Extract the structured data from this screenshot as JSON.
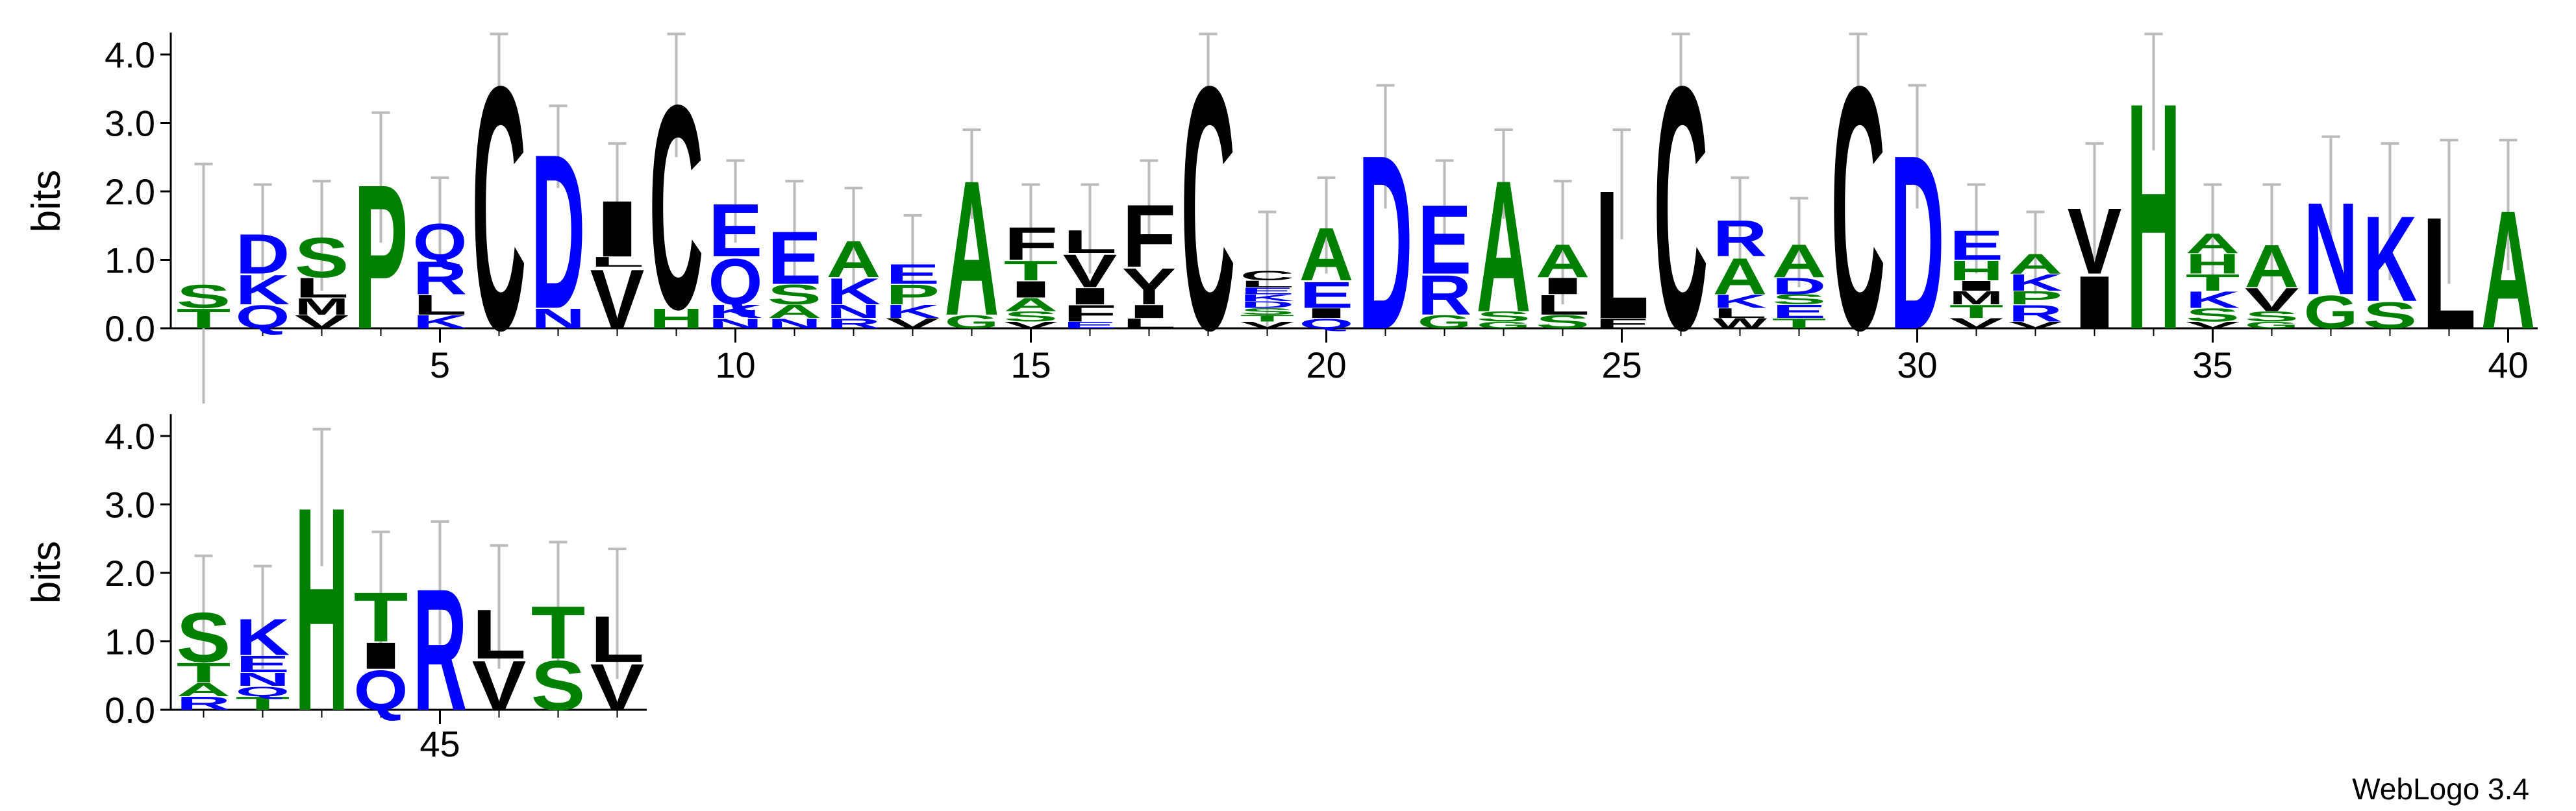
{
  "credit": "WebLogo 3.4",
  "colors": {
    "A": "#008000",
    "C": "#000000",
    "D": "#0000ff",
    "E": "#0000ff",
    "F": "#000000",
    "G": "#008000",
    "H": "#008000",
    "I": "#000000",
    "K": "#0000ff",
    "L": "#000000",
    "M": "#000000",
    "N": "#0000ff",
    "P": "#008000",
    "Q": "#0000ff",
    "R": "#0000ff",
    "S": "#008000",
    "T": "#008000",
    "V": "#000000",
    "W": "#000000",
    "Y": "#000000"
  },
  "chart_data": [
    {
      "type": "logo",
      "ylabel": "bits",
      "ylim": [
        0,
        4.32
      ],
      "yticks": [
        {
          "value": 0,
          "label": "0.0"
        },
        {
          "value": 1,
          "label": "1.0"
        },
        {
          "value": 2,
          "label": "2.0"
        },
        {
          "value": 3,
          "label": "3.0"
        },
        {
          "value": 4,
          "label": "4.0"
        }
      ],
      "xlim": [
        0.5,
        40.5
      ],
      "xticks": [
        5,
        10,
        15,
        20,
        25,
        30,
        35,
        40
      ],
      "positions": [
        {
          "x": 1,
          "letters": [
            "T",
            "S"
          ],
          "bits": [
            0.3,
            0.35
          ],
          "error": 1.75
        },
        {
          "x": 2,
          "letters": [
            "Q",
            "K",
            "D"
          ],
          "bits": [
            0.35,
            0.45,
            0.6
          ],
          "error": 0.7
        },
        {
          "x": 3,
          "letters": [
            "V",
            "M",
            "L",
            "S"
          ],
          "bits": [
            0.2,
            0.25,
            0.3,
            0.6
          ],
          "error": 0.8
        },
        {
          "x": 4,
          "letters": [
            "P"
          ],
          "bits": [
            2.2
          ],
          "error": 0.95
        },
        {
          "x": 5,
          "letters": [
            "K",
            "L",
            "R",
            "Q"
          ],
          "bits": [
            0.2,
            0.3,
            0.5,
            0.55
          ],
          "error": 0.65
        },
        {
          "x": 6,
          "letters": [
            "C"
          ],
          "bits": [
            3.7
          ],
          "error": 0.6
        },
        {
          "x": 7,
          "letters": [
            "N",
            "D"
          ],
          "bits": [
            0.3,
            2.35
          ],
          "error": 0.6
        },
        {
          "x": 8,
          "letters": [
            "V",
            "L",
            "I"
          ],
          "bits": [
            0.9,
            0.15,
            0.85
          ],
          "error": 0.8
        },
        {
          "x": 9,
          "letters": [
            "H",
            "C"
          ],
          "bits": [
            0.3,
            3.1
          ],
          "error": 0.9
        },
        {
          "x": 10,
          "letters": [
            "N",
            "K",
            "Q",
            "E"
          ],
          "bits": [
            0.15,
            0.2,
            0.7,
            0.8
          ],
          "error": 0.6
        },
        {
          "x": 11,
          "letters": [
            "N",
            "A",
            "S",
            "E"
          ],
          "bits": [
            0.15,
            0.2,
            0.3,
            0.8
          ],
          "error": 0.7
        },
        {
          "x": 12,
          "letters": [
            "R",
            "N",
            "K",
            "A"
          ],
          "bits": [
            0.15,
            0.2,
            0.4,
            0.55
          ],
          "error": 0.75
        },
        {
          "x": 13,
          "letters": [
            "V",
            "K",
            "P",
            "E"
          ],
          "bits": [
            0.15,
            0.2,
            0.3,
            0.3
          ],
          "error": 0.7
        },
        {
          "x": 14,
          "letters": [
            "G",
            "A"
          ],
          "bits": [
            0.2,
            2.05
          ],
          "error": 0.65
        },
        {
          "x": 15,
          "letters": [
            "V",
            "S",
            "A",
            "I",
            "T",
            "F"
          ],
          "bits": [
            0.1,
            0.15,
            0.2,
            0.25,
            0.3,
            0.5
          ],
          "error": 0.6
        },
        {
          "x": 16,
          "letters": [
            "E",
            "F",
            "I",
            "V",
            "L"
          ],
          "bits": [
            0.1,
            0.25,
            0.25,
            0.5,
            0.35
          ],
          "error": 0.65
        },
        {
          "x": 17,
          "letters": [
            "L",
            "I",
            "Y",
            "F"
          ],
          "bits": [
            0.15,
            0.2,
            0.55,
            0.95
          ],
          "error": 0.6
        },
        {
          "x": 18,
          "letters": [
            "C"
          ],
          "bits": [
            3.7
          ],
          "error": 0.6
        },
        {
          "x": 19,
          "letters": [
            "V",
            "T",
            "S",
            "D",
            "K",
            "E",
            "L",
            "C"
          ],
          "bits": [
            0.1,
            0.1,
            0.1,
            0.1,
            0.1,
            0.1,
            0.1,
            0.15
          ],
          "error": 0.85
        },
        {
          "x": 20,
          "letters": [
            "Q",
            "I",
            "E",
            "A"
          ],
          "bits": [
            0.15,
            0.15,
            0.4,
            0.8
          ],
          "error": 0.7
        },
        {
          "x": 21,
          "letters": [
            "D"
          ],
          "bits": [
            2.65
          ],
          "error": 0.9
        },
        {
          "x": 22,
          "letters": [
            "G",
            "R",
            "E"
          ],
          "bits": [
            0.2,
            0.6,
            1.05
          ],
          "error": 0.6
        },
        {
          "x": 23,
          "letters": [
            "G",
            "S",
            "A"
          ],
          "bits": [
            0.1,
            0.15,
            2.0
          ],
          "error": 0.65
        },
        {
          "x": 24,
          "letters": [
            "S",
            "L",
            "I",
            "A"
          ],
          "bits": [
            0.2,
            0.3,
            0.25,
            0.5
          ],
          "error": 0.9
        },
        {
          "x": 25,
          "letters": [
            "F",
            "L"
          ],
          "bits": [
            0.15,
            1.95
          ],
          "error": 0.8
        },
        {
          "x": 26,
          "letters": [
            "C"
          ],
          "bits": [
            3.7
          ],
          "error": 0.6
        },
        {
          "x": 27,
          "letters": [
            "W",
            "L",
            "K",
            "A",
            "R"
          ],
          "bits": [
            0.15,
            0.15,
            0.2,
            0.55,
            0.55
          ],
          "error": 0.6
        },
        {
          "x": 28,
          "letters": [
            "T",
            "E",
            "S",
            "D",
            "A"
          ],
          "bits": [
            0.15,
            0.2,
            0.15,
            0.25,
            0.5
          ],
          "error": 0.65
        },
        {
          "x": 29,
          "letters": [
            "C"
          ],
          "bits": [
            3.7
          ],
          "error": 0.6
        },
        {
          "x": 30,
          "letters": [
            "D"
          ],
          "bits": [
            2.65
          ],
          "error": 0.9
        },
        {
          "x": 31,
          "letters": [
            "V",
            "T",
            "M",
            "I",
            "H",
            "E"
          ],
          "bits": [
            0.15,
            0.2,
            0.2,
            0.15,
            0.3,
            0.45
          ],
          "error": 0.65
        },
        {
          "x": 32,
          "letters": [
            "V",
            "R",
            "P",
            "K",
            "A"
          ],
          "bits": [
            0.1,
            0.25,
            0.2,
            0.25,
            0.3
          ],
          "error": 0.6
        },
        {
          "x": 33,
          "letters": [
            "I",
            "V"
          ],
          "bits": [
            0.8,
            1.0
          ],
          "error": 0.9
        },
        {
          "x": 34,
          "letters": [
            "H"
          ],
          "bits": [
            3.45
          ],
          "error": 0.85
        },
        {
          "x": 35,
          "letters": [
            "V",
            "S",
            "K",
            "T",
            "H",
            "A"
          ],
          "bits": [
            0.1,
            0.2,
            0.25,
            0.25,
            0.3,
            0.3
          ],
          "error": 0.7
        },
        {
          "x": 36,
          "letters": [
            "G",
            "S",
            "V",
            "A"
          ],
          "bits": [
            0.1,
            0.15,
            0.35,
            0.65
          ],
          "error": 0.85
        },
        {
          "x": 37,
          "letters": [
            "G",
            "N"
          ],
          "bits": [
            0.5,
            1.4
          ],
          "error": 0.9
        },
        {
          "x": 38,
          "letters": [
            "S",
            "K"
          ],
          "bits": [
            0.4,
            1.3
          ],
          "error": 1.0
        },
        {
          "x": 39,
          "letters": [
            "L"
          ],
          "bits": [
            1.7
          ],
          "error": 1.05
        },
        {
          "x": 40,
          "letters": [
            "A"
          ],
          "bits": [
            1.8
          ],
          "error": 0.95
        }
      ]
    },
    {
      "type": "logo",
      "ylabel": "bits",
      "ylim": [
        0,
        4.32
      ],
      "yticks": [
        {
          "value": 0,
          "label": "0.0"
        },
        {
          "value": 1,
          "label": "1.0"
        },
        {
          "value": 2,
          "label": "2.0"
        },
        {
          "value": 3,
          "label": "3.0"
        },
        {
          "value": 4,
          "label": "4.0"
        }
      ],
      "xlim": [
        40.5,
        48.5
      ],
      "xticks": [
        45
      ],
      "positions": [
        {
          "x": 41,
          "letters": [
            "R",
            "A",
            "T",
            "S"
          ],
          "bits": [
            0.2,
            0.2,
            0.3,
            0.75
          ],
          "error": 0.8
        },
        {
          "x": 42,
          "letters": [
            "T",
            "Q",
            "N",
            "E",
            "K"
          ],
          "bits": [
            0.2,
            0.15,
            0.2,
            0.25,
            0.55
          ],
          "error": 0.75
        },
        {
          "x": 43,
          "letters": [
            "H"
          ],
          "bits": [
            3.1
          ],
          "error": 1.0
        },
        {
          "x": 44,
          "letters": [
            "Q",
            "I",
            "T"
          ],
          "bits": [
            0.6,
            0.4,
            0.75
          ],
          "error": 0.85
        },
        {
          "x": 45,
          "letters": [
            "R"
          ],
          "bits": [
            1.85
          ],
          "error": 0.9
        },
        {
          "x": 46,
          "letters": [
            "V",
            "L"
          ],
          "bits": [
            0.75,
            0.75
          ],
          "error": 0.9
        },
        {
          "x": 47,
          "letters": [
            "S",
            "T"
          ],
          "bits": [
            0.75,
            0.8
          ],
          "error": 0.9
        },
        {
          "x": 48,
          "letters": [
            "V",
            "L"
          ],
          "bits": [
            0.7,
            0.7
          ],
          "error": 0.95
        }
      ]
    }
  ]
}
